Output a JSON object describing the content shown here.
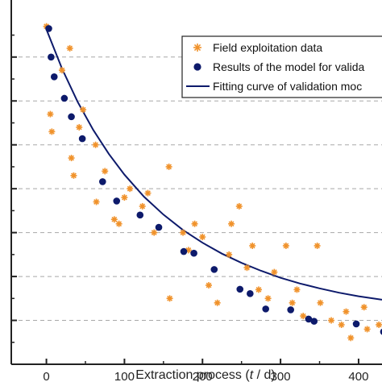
{
  "chart_data": {
    "type": "scatter",
    "xlabel_prefix": "Extraction process (",
    "xlabel_var": "t",
    "xlabel_suffix": " / d)",
    "ylabel": "",
    "xlim": [
      -45,
      430
    ],
    "ylim": [
      0,
      8.3
    ],
    "x_ticks": [
      0,
      100,
      200,
      300,
      400
    ],
    "x_tick_labels": [
      "0",
      "100",
      "200",
      "300",
      "400"
    ],
    "y_grid_values": [
      1,
      2,
      3,
      4,
      5,
      6,
      7
    ],
    "grid": "horizontal dashed",
    "legend_position": "top-right",
    "series": [
      {
        "name": "Field exploitation data",
        "marker": "asterisk",
        "color": "#f0922b",
        "x": [
          0,
          5,
          7,
          20,
          30,
          32,
          35,
          42,
          47,
          63,
          64,
          75,
          87,
          93,
          100,
          107,
          123,
          130,
          138,
          157,
          158,
          175,
          182,
          190,
          200,
          208,
          219,
          234,
          237,
          247,
          257,
          264,
          272,
          284,
          292,
          307,
          315,
          321,
          329,
          347,
          351,
          365,
          378,
          384,
          390,
          407,
          411,
          426
        ],
        "y": [
          7.7,
          5.7,
          5.3,
          6.7,
          7.2,
          4.7,
          4.3,
          5.4,
          5.8,
          5.0,
          3.7,
          4.4,
          3.3,
          3.2,
          3.8,
          4.0,
          3.6,
          3.9,
          3.0,
          4.5,
          1.5,
          3.0,
          2.6,
          3.2,
          2.9,
          1.8,
          1.4,
          2.5,
          3.2,
          3.6,
          2.2,
          2.7,
          1.7,
          1.5,
          2.1,
          2.7,
          1.4,
          1.7,
          1.1,
          2.7,
          1.4,
          1.0,
          0.9,
          1.2,
          0.6,
          1.3,
          0.8,
          0.9
        ]
      },
      {
        "name": "Results of the model for valida",
        "marker": "circle",
        "color": "#0d1a6b",
        "x": [
          3,
          6,
          10,
          23,
          32,
          46,
          72,
          90,
          120,
          144,
          176,
          189,
          215,
          248,
          261,
          281,
          313,
          336,
          343,
          397,
          432
        ],
        "y": [
          7.65,
          7.0,
          6.55,
          6.06,
          5.64,
          5.14,
          4.16,
          3.72,
          3.4,
          3.12,
          2.57,
          2.53,
          2.16,
          1.71,
          1.61,
          1.26,
          1.24,
          1.03,
          0.98,
          0.92,
          0.74
        ]
      },
      {
        "name": "Fitting curve of validation moc",
        "type": "line",
        "color": "#0d1a6b",
        "x": [
          0,
          20,
          40,
          60,
          80,
          100,
          125,
          150,
          175,
          200,
          225,
          250,
          275,
          300,
          325,
          350,
          375,
          400,
          430
        ],
        "y": [
          7.63,
          6.74,
          5.98,
          5.34,
          4.79,
          4.32,
          3.82,
          3.41,
          3.06,
          2.77,
          2.52,
          2.31,
          2.13,
          1.97,
          1.84,
          1.73,
          1.63,
          1.55,
          1.47
        ]
      }
    ]
  },
  "colors": {
    "field": "#f0922b",
    "model": "#0d1a6b",
    "grid": "#a8a8a8",
    "axis": "#222222"
  }
}
